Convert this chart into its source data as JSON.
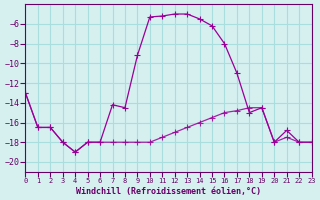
{
  "xlabel": "Windchill (Refroidissement éolien,°C)",
  "background_color": "#d6f0f0",
  "grid_color": "#aadddd",
  "line_color": "#990099",
  "hours": [
    0,
    1,
    2,
    3,
    4,
    5,
    6,
    7,
    8,
    9,
    10,
    11,
    12,
    13,
    14,
    15,
    16,
    17,
    18,
    19,
    20,
    21,
    22,
    23
  ],
  "windchill": [
    -13.0,
    -16.5,
    -16.5,
    -18.0,
    -19.0,
    -18.0,
    -18.0,
    -14.2,
    -14.5,
    -9.2,
    -5.3,
    -5.2,
    -5.0,
    -5.0,
    -5.5,
    -6.2,
    -8.0,
    -11.0,
    -15.0,
    -14.5,
    -18.0,
    -16.8,
    -18.0,
    -18.0
  ],
  "temperature": [
    -13.0,
    -16.5,
    -16.5,
    -18.0,
    -19.0,
    -18.0,
    -18.0,
    -18.0,
    -18.0,
    -18.0,
    -18.0,
    -17.5,
    -17.0,
    -16.5,
    -16.0,
    -15.5,
    -15.0,
    -14.8,
    -14.5,
    -14.5,
    -18.0,
    -17.5,
    -18.0,
    -18.0
  ],
  "ylim": [
    -21,
    -4
  ],
  "yticks": [
    -6,
    -8,
    -10,
    -12,
    -14,
    -16,
    -18,
    -20
  ],
  "xlim": [
    0,
    23
  ]
}
